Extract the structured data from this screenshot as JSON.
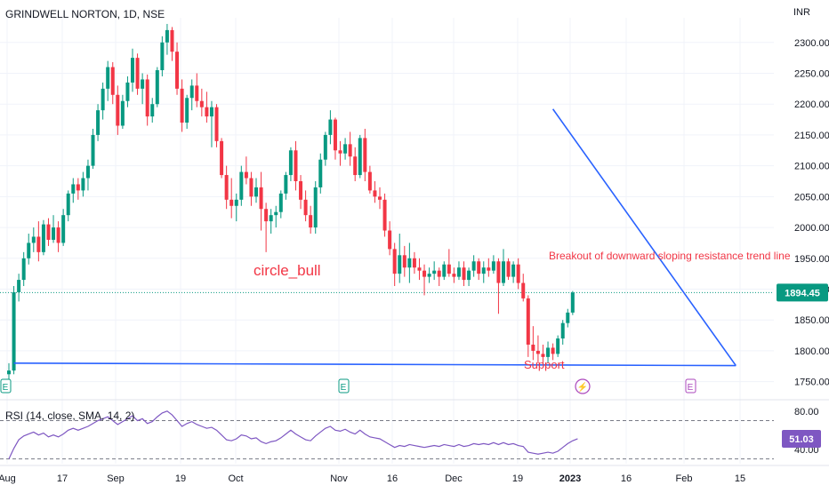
{
  "header": {
    "symbol_title": "GRINDWELL NORTON, 1D, NSE",
    "currency": "INR"
  },
  "annotations": {
    "pattern_label": "circle_bull",
    "breakout_text": "Breakout of downward sloping resistance trend line",
    "support_label": "Support"
  },
  "price_badge": "1894.45",
  "rsi": {
    "label": "RSI (14, close, SMA, 14, 2)",
    "badge": "51.03"
  },
  "event_markers": {
    "earnings_label": "E",
    "dividend_label": "⚡"
  },
  "colors": {
    "up": "#089981",
    "down": "#f23645",
    "trendline": "#2962ff",
    "annotation_text": "#f23645",
    "rsi_line": "#7e57c2",
    "price_badge_bg": "#089981",
    "rsi_badge_bg": "#7e57c2",
    "grid": "#f0f3fa",
    "axis_text": "#131722"
  },
  "chart_data": {
    "type": "candlestick",
    "title": "GRINDWELL NORTON, 1D, NSE",
    "y_axis": {
      "ticks": [
        "2300.00",
        "2250.00",
        "2200.00",
        "2150.00",
        "2100.00",
        "2050.00",
        "2000.00",
        "1950.00",
        "1900.00",
        "1850.00",
        "1800.00",
        "1750.00"
      ],
      "range": [
        1725,
        2340
      ]
    },
    "x_axis": {
      "ticks": [
        "Aug",
        "17",
        "Sep",
        "19",
        "Oct",
        "Nov",
        "16",
        "Dec",
        "19",
        "2023",
        "16",
        "Feb",
        "15"
      ]
    },
    "candles": [
      {
        "o": 1762,
        "h": 1780,
        "l": 1742,
        "c": 1768
      },
      {
        "o": 1768,
        "h": 1905,
        "l": 1762,
        "c": 1895
      },
      {
        "o": 1895,
        "h": 1925,
        "l": 1880,
        "c": 1915
      },
      {
        "o": 1915,
        "h": 1960,
        "l": 1905,
        "c": 1950
      },
      {
        "o": 1950,
        "h": 1990,
        "l": 1940,
        "c": 1975
      },
      {
        "o": 1975,
        "h": 2000,
        "l": 1960,
        "c": 1985
      },
      {
        "o": 1985,
        "h": 2010,
        "l": 1945,
        "c": 1960
      },
      {
        "o": 1960,
        "h": 2012,
        "l": 1955,
        "c": 2005
      },
      {
        "o": 2005,
        "h": 2015,
        "l": 1970,
        "c": 1980
      },
      {
        "o": 1980,
        "h": 2020,
        "l": 1975,
        "c": 2000
      },
      {
        "o": 2000,
        "h": 2010,
        "l": 1960,
        "c": 1975
      },
      {
        "o": 1975,
        "h": 2030,
        "l": 1970,
        "c": 2020
      },
      {
        "o": 2020,
        "h": 2060,
        "l": 2010,
        "c": 2055
      },
      {
        "o": 2055,
        "h": 2080,
        "l": 2040,
        "c": 2070
      },
      {
        "o": 2070,
        "h": 2080,
        "l": 2045,
        "c": 2060
      },
      {
        "o": 2060,
        "h": 2090,
        "l": 2050,
        "c": 2080
      },
      {
        "o": 2080,
        "h": 2110,
        "l": 2060,
        "c": 2100
      },
      {
        "o": 2100,
        "h": 2160,
        "l": 2095,
        "c": 2150
      },
      {
        "o": 2150,
        "h": 2200,
        "l": 2140,
        "c": 2190
      },
      {
        "o": 2190,
        "h": 2235,
        "l": 2175,
        "c": 2225
      },
      {
        "o": 2225,
        "h": 2270,
        "l": 2205,
        "c": 2260
      },
      {
        "o": 2260,
        "h": 2268,
        "l": 2200,
        "c": 2215
      },
      {
        "o": 2215,
        "h": 2230,
        "l": 2150,
        "c": 2165
      },
      {
        "o": 2165,
        "h": 2215,
        "l": 2160,
        "c": 2205
      },
      {
        "o": 2205,
        "h": 2245,
        "l": 2195,
        "c": 2235
      },
      {
        "o": 2235,
        "h": 2290,
        "l": 2220,
        "c": 2275
      },
      {
        "o": 2275,
        "h": 2282,
        "l": 2215,
        "c": 2225
      },
      {
        "o": 2225,
        "h": 2250,
        "l": 2200,
        "c": 2240
      },
      {
        "o": 2240,
        "h": 2248,
        "l": 2165,
        "c": 2180
      },
      {
        "o": 2180,
        "h": 2210,
        "l": 2170,
        "c": 2200
      },
      {
        "o": 2200,
        "h": 2260,
        "l": 2195,
        "c": 2255
      },
      {
        "o": 2255,
        "h": 2310,
        "l": 2245,
        "c": 2300
      },
      {
        "o": 2300,
        "h": 2330,
        "l": 2280,
        "c": 2320
      },
      {
        "o": 2320,
        "h": 2325,
        "l": 2270,
        "c": 2285
      },
      {
        "o": 2285,
        "h": 2300,
        "l": 2215,
        "c": 2225
      },
      {
        "o": 2225,
        "h": 2240,
        "l": 2155,
        "c": 2170
      },
      {
        "o": 2170,
        "h": 2215,
        "l": 2160,
        "c": 2210
      },
      {
        "o": 2210,
        "h": 2240,
        "l": 2190,
        "c": 2230
      },
      {
        "o": 2230,
        "h": 2250,
        "l": 2195,
        "c": 2205
      },
      {
        "o": 2205,
        "h": 2225,
        "l": 2180,
        "c": 2195
      },
      {
        "o": 2195,
        "h": 2220,
        "l": 2170,
        "c": 2180
      },
      {
        "o": 2180,
        "h": 2205,
        "l": 2130,
        "c": 2195
      },
      {
        "o": 2195,
        "h": 2200,
        "l": 2130,
        "c": 2140
      },
      {
        "o": 2140,
        "h": 2145,
        "l": 2080,
        "c": 2085
      },
      {
        "o": 2085,
        "h": 2100,
        "l": 2030,
        "c": 2045
      },
      {
        "o": 2045,
        "h": 2080,
        "l": 2015,
        "c": 2035
      },
      {
        "o": 2035,
        "h": 2055,
        "l": 2010,
        "c": 2045
      },
      {
        "o": 2045,
        "h": 2100,
        "l": 2035,
        "c": 2090
      },
      {
        "o": 2090,
        "h": 2115,
        "l": 2070,
        "c": 2080
      },
      {
        "o": 2080,
        "h": 2090,
        "l": 2035,
        "c": 2050
      },
      {
        "o": 2050,
        "h": 2080,
        "l": 2040,
        "c": 2065
      },
      {
        "o": 2065,
        "h": 2090,
        "l": 1995,
        "c": 2030
      },
      {
        "o": 2030,
        "h": 2040,
        "l": 1960,
        "c": 2010
      },
      {
        "o": 2010,
        "h": 2030,
        "l": 1990,
        "c": 2020
      },
      {
        "o": 2020,
        "h": 2035,
        "l": 2000,
        "c": 2025
      },
      {
        "o": 2025,
        "h": 2060,
        "l": 2015,
        "c": 2055
      },
      {
        "o": 2055,
        "h": 2090,
        "l": 2045,
        "c": 2085
      },
      {
        "o": 2085,
        "h": 2130,
        "l": 2075,
        "c": 2125
      },
      {
        "o": 2125,
        "h": 2140,
        "l": 2060,
        "c": 2075
      },
      {
        "o": 2075,
        "h": 2085,
        "l": 2030,
        "c": 2045
      },
      {
        "o": 2045,
        "h": 2060,
        "l": 2010,
        "c": 2020
      },
      {
        "o": 2020,
        "h": 2035,
        "l": 1990,
        "c": 2000
      },
      {
        "o": 2000,
        "h": 2075,
        "l": 1990,
        "c": 2065
      },
      {
        "o": 2065,
        "h": 2120,
        "l": 2055,
        "c": 2110
      },
      {
        "o": 2110,
        "h": 2155,
        "l": 2100,
        "c": 2150
      },
      {
        "o": 2150,
        "h": 2190,
        "l": 2135,
        "c": 2175
      },
      {
        "o": 2175,
        "h": 2178,
        "l": 2110,
        "c": 2125
      },
      {
        "o": 2125,
        "h": 2140,
        "l": 2100,
        "c": 2120
      },
      {
        "o": 2120,
        "h": 2145,
        "l": 2110,
        "c": 2135
      },
      {
        "o": 2135,
        "h": 2155,
        "l": 2100,
        "c": 2115
      },
      {
        "o": 2115,
        "h": 2130,
        "l": 2075,
        "c": 2085
      },
      {
        "o": 2085,
        "h": 2150,
        "l": 2080,
        "c": 2145
      },
      {
        "o": 2145,
        "h": 2160,
        "l": 2075,
        "c": 2090
      },
      {
        "o": 2090,
        "h": 2100,
        "l": 2055,
        "c": 2060
      },
      {
        "o": 2060,
        "h": 2075,
        "l": 2040,
        "c": 2050
      },
      {
        "o": 2050,
        "h": 2065,
        "l": 2030,
        "c": 2045
      },
      {
        "o": 2045,
        "h": 2055,
        "l": 1985,
        "c": 1995
      },
      {
        "o": 1995,
        "h": 2010,
        "l": 1955,
        "c": 1965
      },
      {
        "o": 1965,
        "h": 1975,
        "l": 1905,
        "c": 1925
      },
      {
        "o": 1925,
        "h": 1990,
        "l": 1910,
        "c": 1955
      },
      {
        "o": 1955,
        "h": 1970,
        "l": 1920,
        "c": 1935
      },
      {
        "o": 1935,
        "h": 1975,
        "l": 1910,
        "c": 1950
      },
      {
        "o": 1950,
        "h": 1960,
        "l": 1925,
        "c": 1935
      },
      {
        "o": 1935,
        "h": 1950,
        "l": 1915,
        "c": 1930
      },
      {
        "o": 1930,
        "h": 1940,
        "l": 1890,
        "c": 1920
      },
      {
        "o": 1920,
        "h": 1935,
        "l": 1910,
        "c": 1925
      },
      {
        "o": 1925,
        "h": 1945,
        "l": 1915,
        "c": 1930
      },
      {
        "o": 1930,
        "h": 1935,
        "l": 1905,
        "c": 1920
      },
      {
        "o": 1920,
        "h": 1945,
        "l": 1915,
        "c": 1940
      },
      {
        "o": 1940,
        "h": 1965,
        "l": 1920,
        "c": 1925
      },
      {
        "o": 1925,
        "h": 1935,
        "l": 1910,
        "c": 1920
      },
      {
        "o": 1920,
        "h": 1945,
        "l": 1915,
        "c": 1935
      },
      {
        "o": 1935,
        "h": 1945,
        "l": 1905,
        "c": 1915
      },
      {
        "o": 1915,
        "h": 1935,
        "l": 1905,
        "c": 1930
      },
      {
        "o": 1930,
        "h": 1955,
        "l": 1920,
        "c": 1945
      },
      {
        "o": 1945,
        "h": 1950,
        "l": 1915,
        "c": 1925
      },
      {
        "o": 1925,
        "h": 1945,
        "l": 1910,
        "c": 1935
      },
      {
        "o": 1935,
        "h": 1950,
        "l": 1920,
        "c": 1930
      },
      {
        "o": 1930,
        "h": 1955,
        "l": 1925,
        "c": 1945
      },
      {
        "o": 1945,
        "h": 1950,
        "l": 1860,
        "c": 1910
      },
      {
        "o": 1910,
        "h": 1965,
        "l": 1905,
        "c": 1945
      },
      {
        "o": 1945,
        "h": 1950,
        "l": 1915,
        "c": 1920
      },
      {
        "o": 1920,
        "h": 1945,
        "l": 1910,
        "c": 1940
      },
      {
        "o": 1940,
        "h": 1950,
        "l": 1900,
        "c": 1910
      },
      {
        "o": 1910,
        "h": 1925,
        "l": 1880,
        "c": 1885
      },
      {
        "o": 1885,
        "h": 1890,
        "l": 1790,
        "c": 1810
      },
      {
        "o": 1810,
        "h": 1840,
        "l": 1785,
        "c": 1800
      },
      {
        "o": 1800,
        "h": 1825,
        "l": 1780,
        "c": 1795
      },
      {
        "o": 1795,
        "h": 1810,
        "l": 1778,
        "c": 1790
      },
      {
        "o": 1790,
        "h": 1815,
        "l": 1780,
        "c": 1805
      },
      {
        "o": 1805,
        "h": 1812,
        "l": 1785,
        "c": 1795
      },
      {
        "o": 1795,
        "h": 1825,
        "l": 1790,
        "c": 1820
      },
      {
        "o": 1820,
        "h": 1850,
        "l": 1810,
        "c": 1845
      },
      {
        "o": 1845,
        "h": 1868,
        "l": 1838,
        "c": 1862
      },
      {
        "o": 1862,
        "h": 1897,
        "l": 1858,
        "c": 1894.45
      }
    ],
    "lines": [
      {
        "name": "Breakout of downward sloping resistance trend line",
        "points": [
          [
            110,
            2192
          ],
          [
            147,
            1776
          ]
        ]
      },
      {
        "name": "Support",
        "points": [
          [
            1,
            1780
          ],
          [
            147,
            1776
          ]
        ]
      }
    ],
    "current_price_line": 1894.45,
    "rsi": {
      "label": "RSI (14, close, SMA, 14, 2)",
      "levels": [
        70,
        30
      ],
      "ticks": [
        "80.00",
        "40.00"
      ],
      "range": [
        25,
        90
      ],
      "current": 51.03,
      "values": [
        30,
        41,
        50,
        54,
        56,
        58,
        55,
        57,
        53,
        55,
        53,
        56,
        60,
        62,
        60,
        62,
        64,
        67,
        70,
        72,
        74,
        70,
        66,
        69,
        72,
        75,
        70,
        72,
        67,
        69,
        74,
        78,
        80,
        76,
        70,
        64,
        67,
        69,
        66,
        64,
        62,
        63,
        60,
        55,
        50,
        49,
        51,
        55,
        54,
        51,
        52,
        48,
        46,
        48,
        49,
        52,
        56,
        60,
        56,
        53,
        50,
        49,
        54,
        58,
        62,
        64,
        60,
        59,
        61,
        58,
        56,
        60,
        56,
        53,
        52,
        51,
        48,
        45,
        42,
        44,
        43,
        45,
        44,
        43,
        42,
        43,
        44,
        43,
        45,
        44,
        43,
        45,
        43,
        44,
        46,
        45,
        46,
        45,
        47,
        45,
        47,
        45,
        46,
        44,
        43,
        37,
        36,
        35,
        36,
        37,
        36,
        38,
        42,
        46,
        49,
        51.03
      ]
    }
  }
}
